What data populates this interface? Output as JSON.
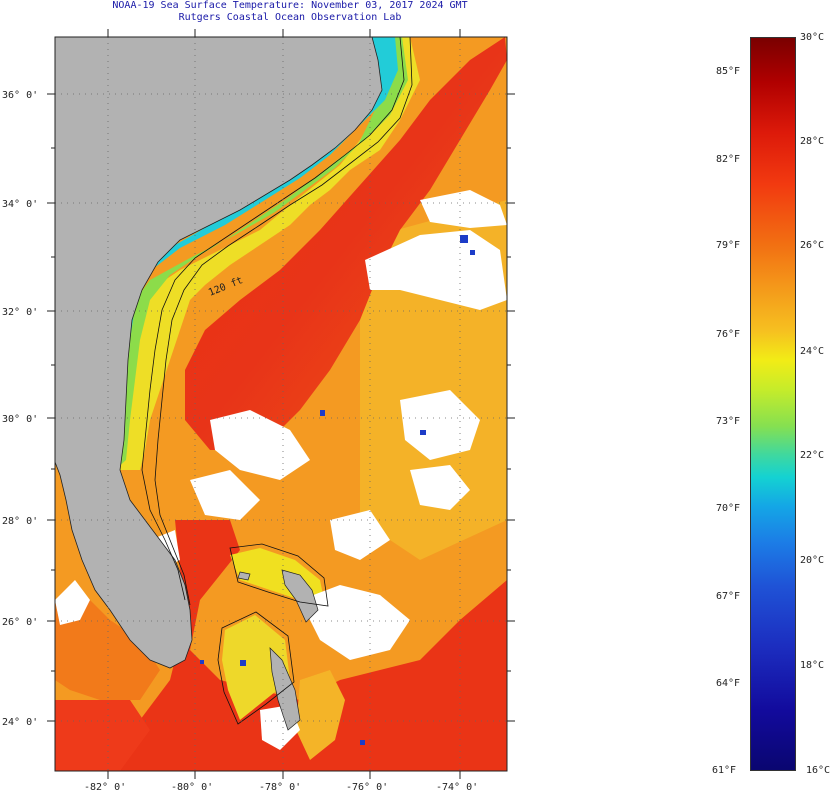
{
  "title": {
    "line1": "NOAA-19 Sea Surface Temperature:  November 03, 2017 2024 GMT",
    "line2": "Rutgers Coastal Ocean Observation Lab"
  },
  "map": {
    "lat_labels": [
      "36° 0'",
      "34° 0'",
      "32° 0'",
      "30° 0'",
      "28° 0'",
      "26° 0'",
      "24° 0'"
    ],
    "lon_labels": [
      "-82° 0'",
      "-80° 0'",
      "-78° 0'",
      "-76° 0'",
      "-74° 0'"
    ],
    "contour_label": "120 ft",
    "colors": {
      "land": "#b2b2b2",
      "warm": "#ee3a1a",
      "orange": "#f49a22",
      "yellow": "#eee020",
      "cyan": "#22d0d8",
      "clouds": "#ffffff"
    }
  },
  "colorbar": {
    "fahrenheit": [
      "85°F",
      "82°F",
      "79°F",
      "76°F",
      "73°F",
      "70°F",
      "67°F",
      "64°F",
      "61°F"
    ],
    "celsius": [
      "30°C",
      "28°C",
      "26°C",
      "24°C",
      "22°C",
      "20°C",
      "18°C",
      "16°C"
    ],
    "range_c": [
      16,
      30
    ],
    "range_f": [
      61,
      86
    ]
  }
}
